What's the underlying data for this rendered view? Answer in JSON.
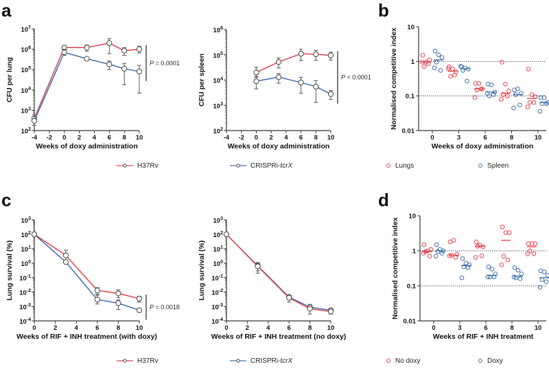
{
  "colors": {
    "red": "#e5404b",
    "blue": "#3f6fae",
    "axis": "#333333",
    "error": "#555555",
    "refline": "#555555"
  },
  "panel_labels": [
    "a",
    "b",
    "c",
    "d"
  ],
  "legends": {
    "row1": [
      {
        "label": "H37Rv",
        "color": "red",
        "style": "line-marker"
      },
      {
        "label": "CRISPRi-tcrX",
        "italic_suffix": "tcrX",
        "color": "blue",
        "style": "line-marker"
      },
      {
        "label": "Lungs",
        "color": "red",
        "style": "open-circle"
      },
      {
        "label": "Spleen",
        "color": "blue",
        "style": "open-circle"
      }
    ],
    "row2": [
      {
        "label": "H37Rv",
        "color": "red",
        "style": "line-marker"
      },
      {
        "label": "CRISPRi-tcrX",
        "italic_suffix": "tcrX",
        "color": "blue",
        "style": "line-marker"
      },
      {
        "label": "No doxy",
        "color": "red",
        "style": "open-circle"
      },
      {
        "label": "Doxy",
        "color": "blue",
        "style": "open-circle"
      }
    ]
  },
  "chart_data": [
    {
      "panel": "a",
      "type": "line",
      "yscale": "log",
      "xlabel": "Weeks of doxy administration",
      "ylabel": "CFU per lung",
      "xlim": [
        -4,
        10
      ],
      "xticks": [
        -4,
        -2,
        0,
        2,
        4,
        6,
        8,
        10
      ],
      "ylim_exp": [
        2,
        7
      ],
      "yticks_exp": [
        2,
        3,
        4,
        5,
        6,
        7
      ],
      "annotation": "P = 0.0001",
      "series": [
        {
          "name": "H37Rv",
          "color": "red",
          "x": [
            -4,
            0,
            3,
            6,
            8,
            10
          ],
          "y": [
            400,
            1200000,
            1200000,
            2000000,
            850000,
            1000000
          ],
          "err_low": [
            250,
            900000,
            800000,
            600000,
            500000,
            650000
          ],
          "err_high": [
            600,
            1500000,
            1600000,
            3300000,
            1200000,
            1400000
          ]
        },
        {
          "name": "CRISPRi-tcrX",
          "color": "blue",
          "x": [
            -4,
            0,
            3,
            6,
            8,
            10
          ],
          "y": [
            300,
            700000,
            340000,
            180000,
            110000,
            80000
          ],
          "err_low": [
            180,
            500000,
            300000,
            100000,
            18000,
            7000
          ],
          "err_high": [
            500,
            1000000,
            380000,
            260000,
            200000,
            160000
          ]
        }
      ]
    },
    {
      "panel": "a",
      "type": "line",
      "yscale": "log",
      "xlabel": "Weeks of doxy administration",
      "ylabel": "CFU per spleen",
      "xlim": [
        -4,
        10
      ],
      "xticks": [
        -4,
        -2,
        0,
        2,
        4,
        6,
        8,
        10
      ],
      "ylim_exp": [
        2,
        6
      ],
      "yticks_exp": [
        2,
        3,
        4,
        5,
        6
      ],
      "annotation": "P < 0.0001",
      "series": [
        {
          "name": "H37Rv",
          "color": "red",
          "x": [
            0,
            3,
            6,
            8,
            10
          ],
          "y": [
            20000,
            52000,
            110000,
            105000,
            95000
          ],
          "err_low": [
            13000,
            30000,
            58000,
            60000,
            62000
          ],
          "err_high": [
            32000,
            75000,
            165000,
            150000,
            125000
          ]
        },
        {
          "name": "CRISPRi-tcrX",
          "color": "blue",
          "x": [
            0,
            3,
            6,
            8,
            10
          ],
          "y": [
            9000,
            13000,
            8000,
            5500,
            2800
          ],
          "err_low": [
            4500,
            7500,
            3000,
            1300,
            1700
          ],
          "err_high": [
            14000,
            18000,
            13000,
            9500,
            3900
          ]
        }
      ]
    },
    {
      "panel": "b",
      "type": "scatter",
      "yscale": "log",
      "xlabel": "Weeks of doxy administration",
      "ylabel": "Normalised competitive index",
      "categories": [
        "0",
        "3",
        "6",
        "8",
        "10"
      ],
      "ylim": [
        0.01,
        10
      ],
      "yticks": [
        "0.01",
        "0.1",
        "1",
        "10"
      ],
      "reference_lines": [
        1,
        0.1
      ],
      "series": [
        {
          "name": "Lungs",
          "color": "red",
          "points": [
            [
              1.5,
              0.95,
              1.1,
              0.7,
              0.85,
              0.95
            ],
            [
              0.7,
              0.6,
              0.5,
              0.37,
              0.4,
              0.62
            ],
            [
              0.23,
              0.23,
              0.16,
              0.15,
              0.16,
              0.09
            ],
            [
              0.95,
              0.22,
              0.14,
              0.11,
              0.1,
              0.08
            ],
            [
              0.6,
              0.11,
              0.095,
              0.065,
              0.065,
              0.048
            ]
          ],
          "means": [
            0.95,
            0.52,
            0.16,
            0.12,
            0.085
          ]
        },
        {
          "name": "Spleen",
          "color": "blue",
          "points": [
            [
              2.0,
              1.55,
              1.3,
              0.95,
              0.55,
              0.65
            ],
            [
              0.7,
              0.65,
              0.6,
              0.55,
              0.27,
              0.72
            ],
            [
              0.22,
              0.21,
              0.13,
              0.1,
              0.11,
              0.12
            ],
            [
              0.15,
              0.16,
              0.12,
              0.11,
              0.055,
              0.045
            ],
            [
              0.09,
              0.09,
              0.065,
              0.06,
              0.06,
              0.036
            ]
          ],
          "means": [
            1.1,
            0.62,
            0.13,
            0.11,
            0.065
          ]
        }
      ]
    },
    {
      "panel": "c",
      "type": "line",
      "yscale": "log",
      "xlabel": "Weeks of RIF + INH treatment (with doxy)",
      "ylabel": "Lung survival (%)",
      "xlim": [
        0,
        10
      ],
      "xticks": [
        0,
        2,
        4,
        6,
        8,
        10
      ],
      "ylim_exp": [
        -4,
        3
      ],
      "yticks_exp": [
        -4,
        -3,
        -2,
        -1,
        0,
        1,
        2,
        3
      ],
      "annotation": "P = 0.0018",
      "series": [
        {
          "name": "H37Rv",
          "color": "red",
          "x": [
            0,
            3,
            6,
            8,
            10
          ],
          "y": [
            100,
            3.5,
            0.013,
            0.008,
            0.0035
          ],
          "err_low": [
            80,
            1.2,
            0.007,
            0.004,
            0.002
          ],
          "err_high": [
            125,
            8,
            0.02,
            0.014,
            0.005
          ]
        },
        {
          "name": "CRISPRi-tcrX",
          "color": "blue",
          "x": [
            0,
            3,
            6,
            8,
            10
          ],
          "y": [
            100,
            1.2,
            0.003,
            0.0017,
            0.00055
          ],
          "err_low": [
            80,
            1.0,
            0.0015,
            0.0006,
            0.0004
          ],
          "err_high": [
            125,
            1.5,
            0.006,
            0.0028,
            0.0007
          ]
        }
      ]
    },
    {
      "panel": "c",
      "type": "line",
      "yscale": "log",
      "xlabel": "Weeks of RIF + INH treatment (no doxy)",
      "ylabel": "Lung survival (%)",
      "xlim": [
        0,
        10
      ],
      "xticks": [
        0,
        2,
        4,
        6,
        8,
        10
      ],
      "ylim_exp": [
        -4,
        3
      ],
      "yticks_exp": [
        -4,
        -3,
        -2,
        -1,
        0,
        1,
        2,
        3
      ],
      "series": [
        {
          "name": "CRISPRi-tcrX",
          "color": "blue",
          "x": [
            0,
            3,
            6,
            8,
            10
          ],
          "y": [
            100,
            0.65,
            0.0045,
            0.0009,
            0.00055
          ],
          "err_low": [
            80,
            0.3,
            0.003,
            0.0006,
            0.0004
          ],
          "err_high": [
            125,
            1.1,
            0.006,
            0.0014,
            0.0007
          ]
        },
        {
          "name": "H37Rv",
          "color": "red",
          "x": [
            0,
            3,
            6,
            8,
            10
          ],
          "y": [
            100,
            0.6,
            0.004,
            0.0007,
            0.00045
          ],
          "err_low": [
            80,
            0.2,
            0.002,
            0.0003,
            0.0003
          ],
          "err_high": [
            125,
            1.0,
            0.006,
            0.001,
            0.0006
          ]
        }
      ]
    },
    {
      "panel": "d",
      "type": "scatter",
      "yscale": "log",
      "xlabel": "Weeks of RIF + INH treatment",
      "ylabel": "Normalised competitive index",
      "categories": [
        "0",
        "3",
        "6",
        "8",
        "10"
      ],
      "ylim": [
        0.01,
        10
      ],
      "yticks": [
        "0.01",
        "0.1",
        "1",
        "10"
      ],
      "reference_lines": [
        1,
        0.1
      ],
      "series": [
        {
          "name": "No doxy",
          "color": "red",
          "points": [
            [
              1.5,
              1.0,
              1.1,
              0.95,
              0.7,
              0.85
            ],
            [
              1.8,
              2.0,
              0.8,
              0.75,
              0.65,
              0.72
            ],
            [
              1.8,
              1.45,
              1.3,
              1.35,
              0.72,
              0.65
            ],
            [
              4.8,
              3.3,
              3.3,
              0.7,
              0.55,
              0.4
            ],
            [
              1.6,
              1.6,
              1.6,
              1.0,
              0.82,
              0.82
            ]
          ],
          "means": [
            0.95,
            0.75,
            1.35,
            2.0,
            1.3
          ]
        },
        {
          "name": "Doxy",
          "color": "blue",
          "points": [
            [
              1.5,
              1.1,
              1.0,
              0.95,
              0.85,
              0.7
            ],
            [
              0.6,
              0.45,
              0.4,
              0.35,
              0.33,
              0.17
            ],
            [
              0.35,
              0.3,
              0.22,
              0.18,
              0.18,
              0.18
            ],
            [
              0.33,
              0.28,
              0.22,
              0.17,
              0.16,
              0.18
            ],
            [
              0.27,
              0.25,
              0.2,
              0.15,
              0.13,
              0.09
            ]
          ],
          "means": [
            1.0,
            0.38,
            0.2,
            0.19,
            0.17
          ]
        }
      ]
    }
  ]
}
